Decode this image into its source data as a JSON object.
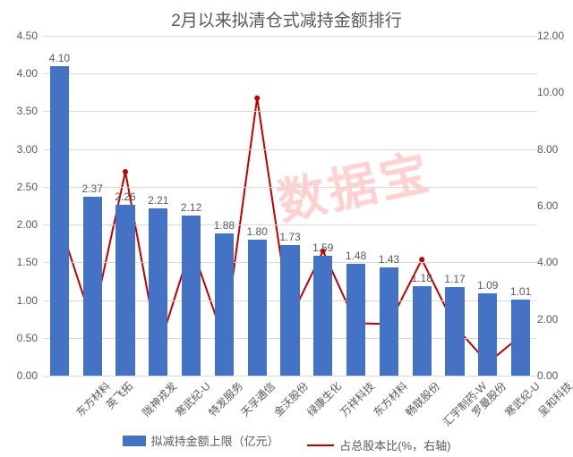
{
  "chart": {
    "type": "bar+line",
    "title": "2月以来拟清仓式减持金额排行",
    "title_fontsize": 19,
    "title_color": "#595959",
    "background_color": "#ffffff",
    "grid_color": "#d9d9d9",
    "bar_color": "#4472c4",
    "line_color": "#c00000",
    "line_width": 2,
    "marker_size": 3,
    "label_fontsize": 12,
    "label_color": "#595959",
    "categories": [
      "东方材料",
      "英飞拓",
      "陇神戎发",
      "寒武纪-U",
      "特发服务",
      "天孚通信",
      "金沃股份",
      "绿康生化",
      "万祥科技",
      "东方材料",
      "畅联股份",
      "汇宇制药-W",
      "罗曼股份",
      "寒武纪-U",
      "呈和科技"
    ],
    "bar_values": [
      4.1,
      2.37,
      2.26,
      2.21,
      2.12,
      1.88,
      1.8,
      1.73,
      1.59,
      1.48,
      1.43,
      1.18,
      1.17,
      1.09,
      1.01
    ],
    "line_values": [
      5.4,
      1.85,
      7.2,
      0.9,
      4.6,
      1.25,
      9.8,
      2.0,
      4.4,
      1.85,
      1.82,
      4.1,
      1.75,
      0.45,
      1.4
    ],
    "y_left": {
      "min": 0.0,
      "max": 4.5,
      "step": 0.5
    },
    "y_right": {
      "min": 0.0,
      "max": 12.0,
      "step": 2.0
    },
    "legend": {
      "bar_label": "拟减持金额上限（亿元）",
      "line_label": "占总股本比(%，右轴)"
    },
    "watermark": "数据宝"
  }
}
